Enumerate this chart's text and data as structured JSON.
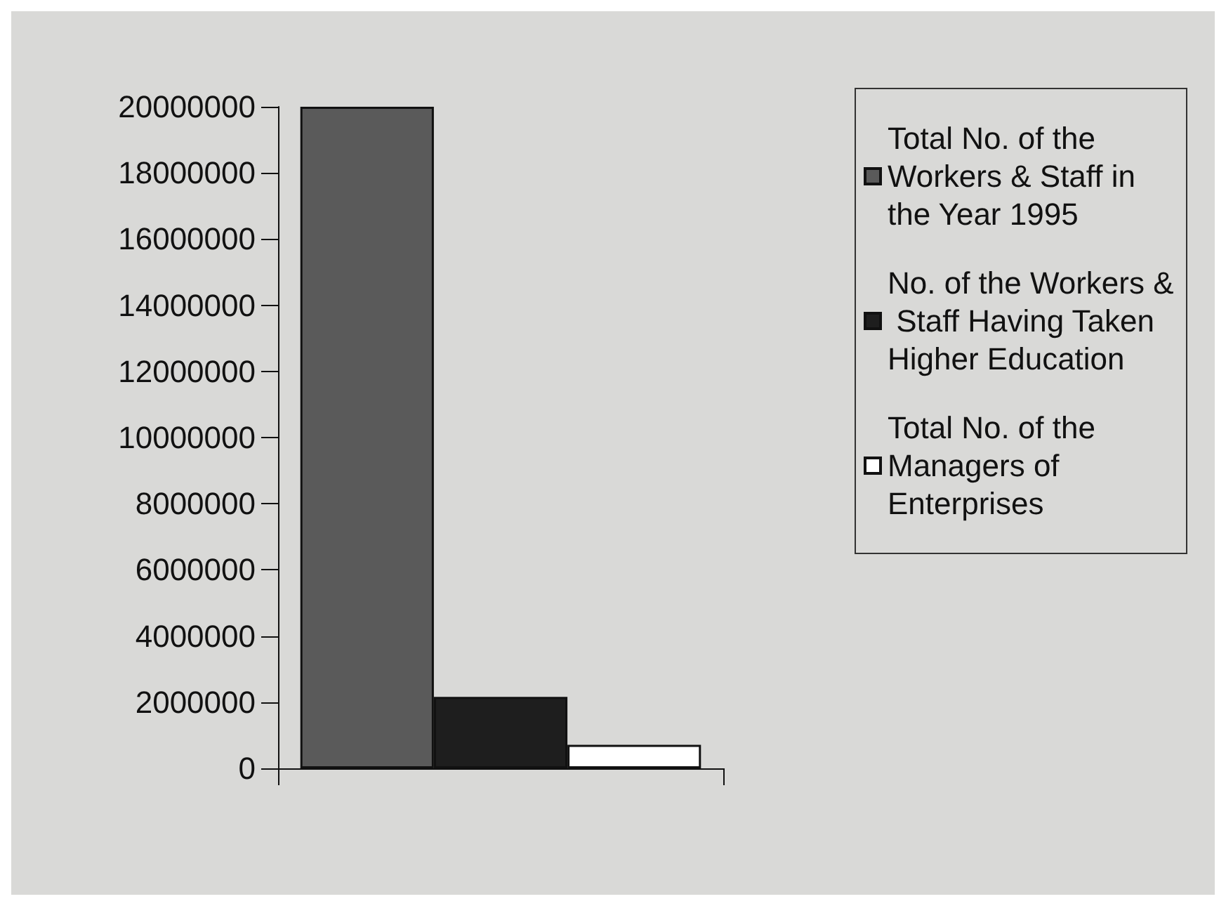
{
  "chart_data": {
    "type": "bar",
    "categories": [
      null
    ],
    "series": [
      {
        "name": "Total No. of the Workers & Staff in the Year 1995",
        "color": "#5a5a5a",
        "values": [
          20000000
        ]
      },
      {
        "name": "No. of the Workers & Staff Having Taken Higher Education",
        "color": "#1e1e1e",
        "values": [
          2160000
        ]
      },
      {
        "name": "Total No. of the Managers of Enterprises",
        "color": "#ffffff",
        "values": [
          710000
        ]
      }
    ],
    "ylim": [
      0,
      20000000
    ],
    "yticks": [
      0,
      2000000,
      4000000,
      6000000,
      8000000,
      10000000,
      12000000,
      14000000,
      16000000,
      18000000,
      20000000
    ],
    "grid": false,
    "legend": "right"
  }
}
